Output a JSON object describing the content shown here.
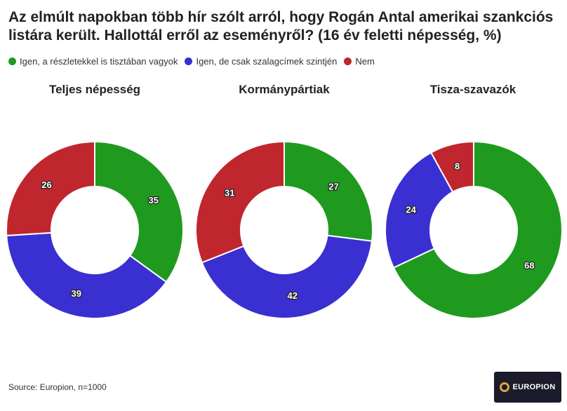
{
  "title": "Az elmúlt napokban több hír szólt arról, hogy Rogán Antal amerikai szankciós listára került. Hallottál erről az eseményről? (16 év feletti népesség, %)",
  "legend": [
    {
      "label": "Igen, a részletekkel is tisztában vagyok",
      "color": "#1f9a1f"
    },
    {
      "label": "Igen, de csak szalagcímek szintjén",
      "color": "#3a2fd1"
    },
    {
      "label": "Nem",
      "color": "#c0262d"
    }
  ],
  "chart_data": [
    {
      "type": "pie",
      "title": "Teljes népesség",
      "categories": [
        "Igen, a részletekkel is tisztában vagyok",
        "Igen, de csak szalagcímek szintjén",
        "Nem"
      ],
      "values": [
        35,
        39,
        26
      ]
    },
    {
      "type": "pie",
      "title": "Kormánypártiak",
      "categories": [
        "Igen, a részletekkel is tisztában vagyok",
        "Igen, de csak szalagcímek szintjén",
        "Nem"
      ],
      "values": [
        27,
        42,
        31
      ]
    },
    {
      "type": "pie",
      "title": "Tisza-szavazók",
      "categories": [
        "Igen, a részletekkel is tisztában vagyok",
        "Igen, de csak szalagcímek szintjén",
        "Nem"
      ],
      "values": [
        68,
        24,
        8
      ]
    }
  ],
  "source": "Source: Europion, n=1000",
  "logo": {
    "text": "EUROPION"
  }
}
